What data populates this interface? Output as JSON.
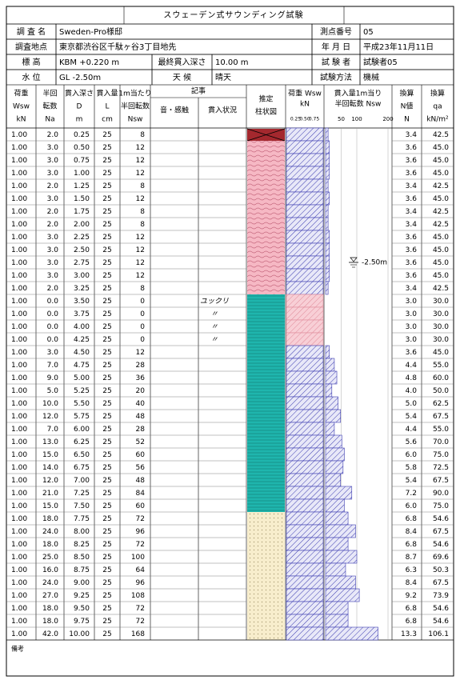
{
  "title": "スウェーデン式サウンディング試験",
  "header": {
    "survey_name_label": "調 査 名",
    "survey_name": "Sweden-Pro様邸",
    "point_no_label": "測点番号",
    "point_no": "05",
    "location_label": "調査地点",
    "location": "東京都渋谷区千駄ヶ谷3丁目地先",
    "date_label": "年 月 日",
    "date": "平成23年11月11日",
    "elevation_label": "標 高",
    "elevation": "KBM +0.220 m",
    "final_depth_label": "最終貫入深さ",
    "final_depth": "10.00 m",
    "tester_label": "試 験 者",
    "tester": "試験者05",
    "water_level_label": "水 位",
    "water_level": "GL -2.50m",
    "weather_label": "天 候",
    "weather": "晴天",
    "method_label": "試験方法",
    "method": "機械"
  },
  "columns": {
    "wsw": [
      "荷重",
      "Wsw",
      "kN"
    ],
    "na": [
      "半回",
      "転数",
      "Na"
    ],
    "d": [
      "貫入深さ",
      "D",
      "m"
    ],
    "l": [
      "貫入量",
      "L",
      "cm"
    ],
    "nsw": [
      "1m当たり",
      "半回転数",
      "Nsw"
    ],
    "notes": "記事",
    "sound": "音・感触",
    "status": "貫入状況",
    "column": [
      "推定",
      "柱状図"
    ],
    "wsw_graph": [
      "荷重 Wsw",
      "kN"
    ],
    "nsw_graph": [
      "貫入量1m当り",
      "半回転数 Nsw"
    ],
    "n": [
      "換算",
      "N値",
      "N"
    ],
    "qa": [
      "換算",
      "qa",
      "kN/m²"
    ]
  },
  "wsw_graph": {
    "xlim": [
      0,
      1
    ],
    "xticks": [
      {
        "value": 0.25,
        "label": "0.25"
      },
      {
        "value": 0.5,
        "label": "0.50"
      },
      {
        "value": 0.75,
        "label": "0.75"
      }
    ]
  },
  "nsw_graph": {
    "xlim": [
      0,
      200
    ],
    "xticks": [
      50,
      100,
      200
    ],
    "water_label": "-2.50m"
  },
  "rows": [
    {
      "wsw": "1.00",
      "na": "2.0",
      "d": "0.25",
      "l": "25",
      "nsw": "8",
      "n": "3.4",
      "qa": "42.5"
    },
    {
      "wsw": "1.00",
      "na": "3.0",
      "d": "0.50",
      "l": "25",
      "nsw": "12",
      "n": "3.6",
      "qa": "45.0"
    },
    {
      "wsw": "1.00",
      "na": "3.0",
      "d": "0.75",
      "l": "25",
      "nsw": "12",
      "n": "3.6",
      "qa": "45.0"
    },
    {
      "wsw": "1.00",
      "na": "3.0",
      "d": "1.00",
      "l": "25",
      "nsw": "12",
      "n": "3.6",
      "qa": "45.0"
    },
    {
      "wsw": "1.00",
      "na": "2.0",
      "d": "1.25",
      "l": "25",
      "nsw": "8",
      "n": "3.4",
      "qa": "42.5"
    },
    {
      "wsw": "1.00",
      "na": "3.0",
      "d": "1.50",
      "l": "25",
      "nsw": "12",
      "n": "3.6",
      "qa": "45.0"
    },
    {
      "wsw": "1.00",
      "na": "2.0",
      "d": "1.75",
      "l": "25",
      "nsw": "8",
      "n": "3.4",
      "qa": "42.5"
    },
    {
      "wsw": "1.00",
      "na": "2.0",
      "d": "2.00",
      "l": "25",
      "nsw": "8",
      "n": "3.4",
      "qa": "42.5"
    },
    {
      "wsw": "1.00",
      "na": "3.0",
      "d": "2.25",
      "l": "25",
      "nsw": "12",
      "n": "3.6",
      "qa": "45.0"
    },
    {
      "wsw": "1.00",
      "na": "3.0",
      "d": "2.50",
      "l": "25",
      "nsw": "12",
      "n": "3.6",
      "qa": "45.0"
    },
    {
      "wsw": "1.00",
      "na": "3.0",
      "d": "2.75",
      "l": "25",
      "nsw": "12",
      "n": "3.6",
      "qa": "45.0"
    },
    {
      "wsw": "1.00",
      "na": "3.0",
      "d": "3.00",
      "l": "25",
      "nsw": "12",
      "n": "3.6",
      "qa": "45.0"
    },
    {
      "wsw": "1.00",
      "na": "2.0",
      "d": "3.25",
      "l": "25",
      "nsw": "8",
      "n": "3.4",
      "qa": "42.5"
    },
    {
      "wsw": "1.00",
      "na": "0.0",
      "d": "3.50",
      "l": "25",
      "nsw": "0",
      "status": "ユックリ",
      "n": "3.0",
      "qa": "30.0"
    },
    {
      "wsw": "1.00",
      "na": "0.0",
      "d": "3.75",
      "l": "25",
      "nsw": "0",
      "status": "〃",
      "n": "3.0",
      "qa": "30.0"
    },
    {
      "wsw": "1.00",
      "na": "0.0",
      "d": "4.00",
      "l": "25",
      "nsw": "0",
      "status": "〃",
      "n": "3.0",
      "qa": "30.0"
    },
    {
      "wsw": "1.00",
      "na": "0.0",
      "d": "4.25",
      "l": "25",
      "nsw": "0",
      "status": "〃",
      "n": "3.0",
      "qa": "30.0"
    },
    {
      "wsw": "1.00",
      "na": "3.0",
      "d": "4.50",
      "l": "25",
      "nsw": "12",
      "n": "3.6",
      "qa": "45.0"
    },
    {
      "wsw": "1.00",
      "na": "7.0",
      "d": "4.75",
      "l": "25",
      "nsw": "28",
      "n": "4.4",
      "qa": "55.0"
    },
    {
      "wsw": "1.00",
      "na": "9.0",
      "d": "5.00",
      "l": "25",
      "nsw": "36",
      "n": "4.8",
      "qa": "60.0"
    },
    {
      "wsw": "1.00",
      "na": "5.0",
      "d": "5.25",
      "l": "25",
      "nsw": "20",
      "n": "4.0",
      "qa": "50.0"
    },
    {
      "wsw": "1.00",
      "na": "10.0",
      "d": "5.50",
      "l": "25",
      "nsw": "40",
      "n": "5.0",
      "qa": "62.5"
    },
    {
      "wsw": "1.00",
      "na": "12.0",
      "d": "5.75",
      "l": "25",
      "nsw": "48",
      "n": "5.4",
      "qa": "67.5"
    },
    {
      "wsw": "1.00",
      "na": "7.0",
      "d": "6.00",
      "l": "25",
      "nsw": "28",
      "n": "4.4",
      "qa": "55.0"
    },
    {
      "wsw": "1.00",
      "na": "13.0",
      "d": "6.25",
      "l": "25",
      "nsw": "52",
      "n": "5.6",
      "qa": "70.0"
    },
    {
      "wsw": "1.00",
      "na": "15.0",
      "d": "6.50",
      "l": "25",
      "nsw": "60",
      "n": "6.0",
      "qa": "75.0"
    },
    {
      "wsw": "1.00",
      "na": "14.0",
      "d": "6.75",
      "l": "25",
      "nsw": "56",
      "n": "5.8",
      "qa": "72.5"
    },
    {
      "wsw": "1.00",
      "na": "12.0",
      "d": "7.00",
      "l": "25",
      "nsw": "48",
      "n": "5.4",
      "qa": "67.5"
    },
    {
      "wsw": "1.00",
      "na": "21.0",
      "d": "7.25",
      "l": "25",
      "nsw": "84",
      "n": "7.2",
      "qa": "90.0"
    },
    {
      "wsw": "1.00",
      "na": "15.0",
      "d": "7.50",
      "l": "25",
      "nsw": "60",
      "n": "6.0",
      "qa": "75.0"
    },
    {
      "wsw": "1.00",
      "na": "18.0",
      "d": "7.75",
      "l": "25",
      "nsw": "72",
      "n": "6.8",
      "qa": "54.6"
    },
    {
      "wsw": "1.00",
      "na": "24.0",
      "d": "8.00",
      "l": "25",
      "nsw": "96",
      "n": "8.4",
      "qa": "67.5"
    },
    {
      "wsw": "1.00",
      "na": "18.0",
      "d": "8.25",
      "l": "25",
      "nsw": "72",
      "n": "6.8",
      "qa": "54.6"
    },
    {
      "wsw": "1.00",
      "na": "25.0",
      "d": "8.50",
      "l": "25",
      "nsw": "100",
      "n": "8.7",
      "qa": "69.6"
    },
    {
      "wsw": "1.00",
      "na": "16.0",
      "d": "8.75",
      "l": "25",
      "nsw": "64",
      "n": "6.3",
      "qa": "50.3"
    },
    {
      "wsw": "1.00",
      "na": "24.0",
      "d": "9.00",
      "l": "25",
      "nsw": "96",
      "n": "8.4",
      "qa": "67.5"
    },
    {
      "wsw": "1.00",
      "na": "27.0",
      "d": "9.25",
      "l": "25",
      "nsw": "108",
      "n": "9.2",
      "qa": "73.9"
    },
    {
      "wsw": "1.00",
      "na": "18.0",
      "d": "9.50",
      "l": "25",
      "nsw": "72",
      "n": "6.8",
      "qa": "54.6"
    },
    {
      "wsw": "1.00",
      "na": "18.0",
      "d": "9.75",
      "l": "25",
      "nsw": "72",
      "n": "6.8",
      "qa": "54.6"
    },
    {
      "wsw": "1.00",
      "na": "42.0",
      "d": "10.00",
      "l": "25",
      "nsw": "168",
      "n": "13.3",
      "qa": "106.1"
    }
  ],
  "remarks_label": "備考"
}
